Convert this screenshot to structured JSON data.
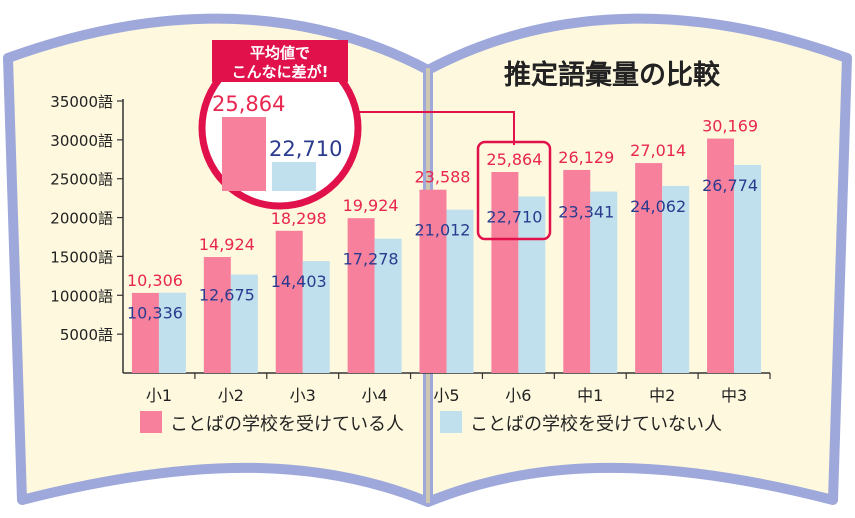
{
  "title": "推定語彙量の比較",
  "callout": {
    "line1": "平均値で",
    "line2": "こんなに差が!",
    "value_a": "25,864",
    "value_b": "22,710",
    "highlight_category": "小6"
  },
  "colors": {
    "series_a": "#f7819d",
    "series_b": "#bfe0ec",
    "label_a": "#e8264f",
    "label_b": "#2a3b8f",
    "callout": "#e0114b",
    "book_border": "#9ea8da",
    "book_fill": "#fdf8de"
  },
  "chart_data": {
    "type": "bar",
    "title": "推定語彙量の比較",
    "categories": [
      "小1",
      "小2",
      "小3",
      "小4",
      "小5",
      "小6",
      "中1",
      "中2",
      "中3"
    ],
    "series": [
      {
        "name": "ことばの学校を受けている人",
        "values": [
          10306,
          14924,
          18298,
          19924,
          23588,
          25864,
          26129,
          27014,
          30169
        ],
        "labels": [
          "10,306",
          "14,924",
          "18,298",
          "19,924",
          "23,588",
          "25,864",
          "26,129",
          "27,014",
          "30,169"
        ]
      },
      {
        "name": "ことばの学校を受けていない人",
        "values": [
          10336,
          12675,
          14403,
          17278,
          21012,
          22710,
          23341,
          24062,
          26774
        ],
        "labels": [
          "10,336",
          "12,675",
          "14,403",
          "17,278",
          "21,012",
          "22,710",
          "23,341",
          "24,062",
          "26,774"
        ]
      }
    ],
    "yticks": [
      5000,
      10000,
      15000,
      20000,
      25000,
      30000,
      35000
    ],
    "ytick_labels": [
      "5000語",
      "10000語",
      "15000語",
      "20000語",
      "25000語",
      "30000語",
      "35000語"
    ],
    "ylim": [
      0,
      35000
    ],
    "grid": false,
    "legend": "bottom"
  }
}
